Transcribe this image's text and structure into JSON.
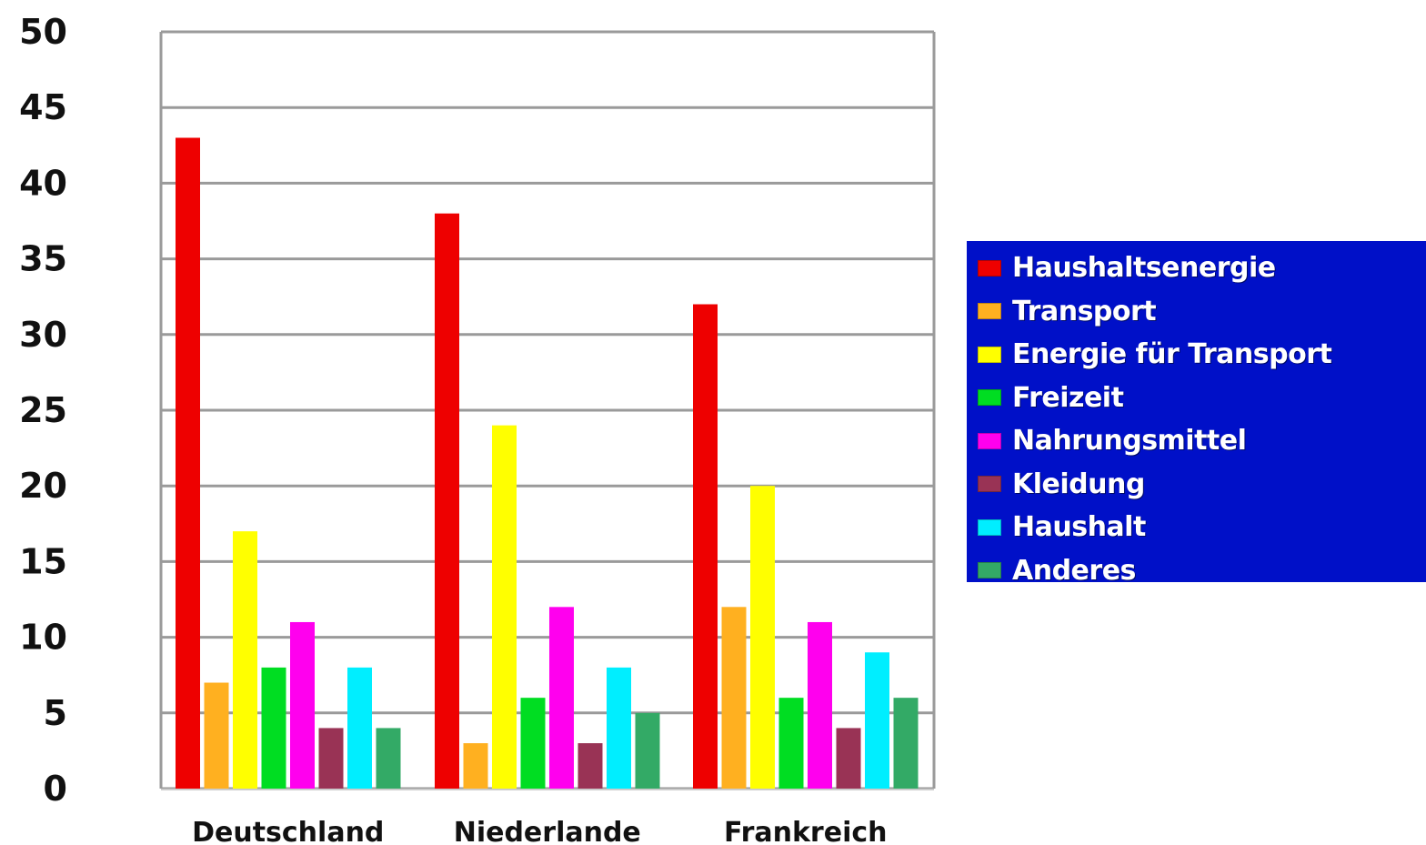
{
  "chart_data": {
    "type": "bar",
    "title": "",
    "xlabel": "",
    "ylabel": "",
    "ylim": [
      0,
      50
    ],
    "yticks": [
      0,
      5,
      10,
      15,
      20,
      25,
      30,
      35,
      40,
      45,
      50
    ],
    "grid": true,
    "legend_position": "right",
    "categories": [
      "Deutschland",
      "Niederlande",
      "Frankreich"
    ],
    "series": [
      {
        "name": "Haushaltsenergie",
        "color": "#ee0000",
        "values": [
          43,
          38,
          32
        ]
      },
      {
        "name": "Transport",
        "color": "#ffb020",
        "values": [
          7,
          3,
          12
        ]
      },
      {
        "name": "Energie für Transport",
        "color": "#ffff00",
        "values": [
          17,
          24,
          20
        ]
      },
      {
        "name": "Freizeit",
        "color": "#00dd22",
        "values": [
          8,
          6,
          6
        ]
      },
      {
        "name": "Nahrungsmittel",
        "color": "#ff00ee",
        "values": [
          11,
          12,
          11
        ]
      },
      {
        "name": "Kleidung",
        "color": "#993355",
        "values": [
          4,
          3,
          4
        ]
      },
      {
        "name": "Haushalt",
        "color": "#00eeff",
        "values": [
          8,
          8,
          9
        ]
      },
      {
        "name": "Anderes",
        "color": "#33aa66",
        "values": [
          4,
          5,
          6
        ]
      }
    ]
  }
}
